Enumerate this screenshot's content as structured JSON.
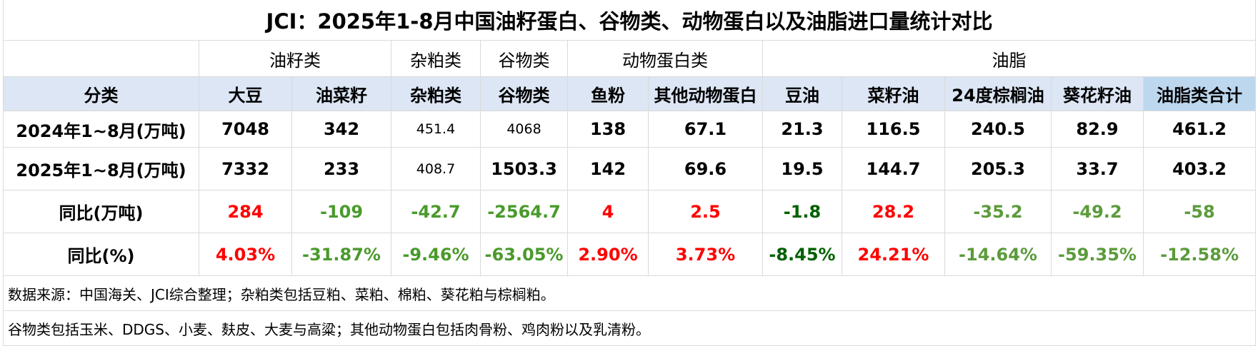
{
  "title": "JCI：2025年1-8月中国油籽蛋白、谷物类、动物蛋白以及油脂进口量统计对比",
  "groups": [
    "油籽类",
    "杂粕类",
    "谷物类",
    "动物蛋白类",
    "油脂"
  ],
  "header": [
    "分类",
    "大豆",
    "油菜籽",
    "杂粕类",
    "谷物类",
    "鱼粉",
    "其他动物蛋白",
    "豆油",
    "菜籽油",
    "24度棕榈油",
    "葵花籽油",
    "油脂类合计"
  ],
  "rows": [
    {
      "label": "2024年1~8月(万吨)",
      "cells": [
        "7048",
        "342",
        "451.4",
        "4068",
        "138",
        "67.1",
        "21.3",
        "116.5",
        "240.5",
        "82.9",
        "461.2"
      ]
    },
    {
      "label": "2025年1~8月(万吨)",
      "cells": [
        "7332",
        "233",
        "408.7",
        "1503.3",
        "142",
        "69.6",
        "19.5",
        "144.7",
        "205.3",
        "33.7",
        "403.2"
      ]
    },
    {
      "label": "同比(万吨)",
      "cells": [
        "284",
        "-109",
        "-42.7",
        "-2564.7",
        "4",
        "2.5",
        "-1.8",
        "28.2",
        "-35.2",
        "-49.2",
        "-58"
      ],
      "colors": [
        "#ff0000",
        "#4a9a2c",
        "#4a9a2c",
        "#4a9a2c",
        "#ff0000",
        "#ff0000",
        "#006100",
        "#ff0000",
        "#5b9b3b",
        "#5b9b3b",
        "#5b9b3b"
      ]
    },
    {
      "label": "同比(%)",
      "cells": [
        "4.03%",
        "-31.87%",
        "-9.46%",
        "-63.05%",
        "2.90%",
        "3.73%",
        "-8.45%",
        "24.21%",
        "-14.64%",
        "-59.35%",
        "-12.58%"
      ],
      "colors": [
        "#ff0000",
        "#4a9a2c",
        "#4a9a2c",
        "#4a9a2c",
        "#ff0000",
        "#ff0000",
        "#006100",
        "#ff0000",
        "#5b9b3b",
        "#5b9b3b",
        "#5b9b3b"
      ]
    }
  ],
  "notes": [
    "数据来源：中国海关、JCI综合整理；杂粕类包括豆粕、菜粕、棉粕、葵花粕与棕榈粕。",
    "谷物类包括玉米、DDGS、小麦、麸皮、大麦与高粱；其他动物蛋白包括肉骨粉、鸡肉粉以及乳清粉。"
  ]
}
